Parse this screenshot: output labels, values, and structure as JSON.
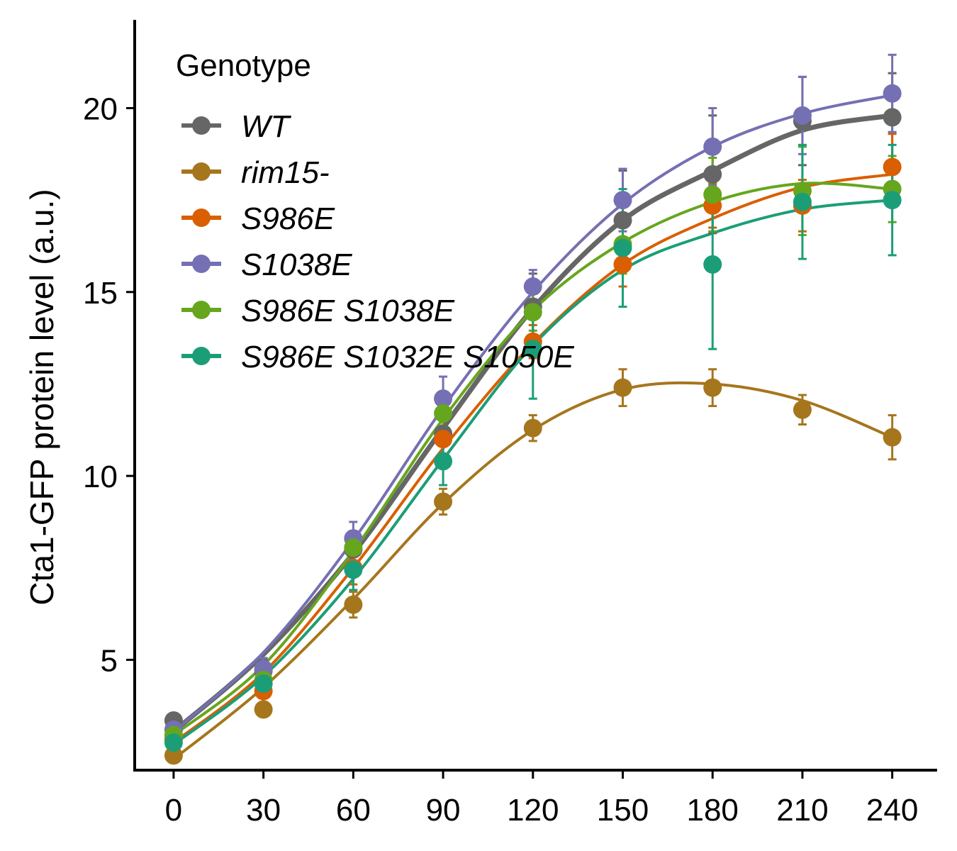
{
  "chart_data": {
    "type": "line",
    "title": "",
    "xlabel": "",
    "ylabel": "Cta1-GFP protein level (a.u.)",
    "x": [
      0,
      30,
      60,
      90,
      120,
      150,
      180,
      210,
      240
    ],
    "x_ticks": [
      "0",
      "30",
      "60",
      "90",
      "120",
      "150",
      "180",
      "210",
      "240"
    ],
    "y_ticks": [
      "5",
      "10",
      "15",
      "20"
    ],
    "xlim": [
      -13,
      255
    ],
    "ylim": [
      2.0,
      22.4
    ],
    "grid": false,
    "legend": {
      "title": "Genotype",
      "position": "top-left"
    },
    "series": [
      {
        "name": "WT",
        "color": "#666666",
        "values": [
          3.35,
          4.7,
          8.0,
          11.15,
          14.6,
          16.95,
          18.2,
          19.65,
          19.75
        ],
        "errors": [
          0.2,
          0.3,
          0.5,
          0.6,
          0.9,
          1.35,
          1.6,
          1.2,
          1.2
        ],
        "fit": [
          3.05,
          5.15,
          7.9,
          11.3,
          14.55,
          16.95,
          18.3,
          19.4,
          19.8
        ]
      },
      {
        "name": "rim15-",
        "color": "#a6761d",
        "values": [
          2.4,
          3.65,
          6.5,
          9.3,
          11.3,
          12.4,
          12.4,
          11.8,
          11.05
        ],
        "errors": [
          0.2,
          0.2,
          0.35,
          0.35,
          0.35,
          0.5,
          0.5,
          0.4,
          0.6
        ],
        "fit": [
          2.3,
          4.25,
          6.65,
          9.25,
          11.25,
          12.35,
          12.5,
          12.05,
          11.05
        ]
      },
      {
        "name": "S986E",
        "color": "#d95f02",
        "values": [
          2.85,
          4.15,
          7.5,
          11.0,
          13.65,
          15.75,
          17.35,
          17.35,
          18.4
        ],
        "errors": [
          0.2,
          0.3,
          0.45,
          0.5,
          0.45,
          0.6,
          0.6,
          0.7,
          0.9
        ],
        "fit": [
          2.75,
          4.65,
          7.5,
          10.75,
          13.6,
          15.75,
          17.0,
          17.85,
          18.2
        ]
      },
      {
        "name": "S1038E",
        "color": "#7570b3",
        "values": [
          3.1,
          4.75,
          8.3,
          12.1,
          15.15,
          17.5,
          18.95,
          19.8,
          20.4
        ],
        "errors": [
          0.2,
          0.3,
          0.45,
          0.6,
          0.45,
          0.85,
          1.05,
          1.05,
          1.05
        ],
        "fit": [
          3.05,
          5.2,
          8.25,
          11.85,
          15.0,
          17.4,
          18.95,
          19.85,
          20.35
        ]
      },
      {
        "name": "S986E S1038E",
        "color": "#66a61e",
        "values": [
          2.95,
          4.45,
          8.05,
          11.7,
          14.45,
          16.3,
          17.65,
          17.75,
          17.8
        ],
        "errors": [
          0.2,
          0.3,
          0.45,
          0.5,
          0.5,
          0.8,
          1.0,
          1.2,
          0.9
        ],
        "fit": [
          2.95,
          4.85,
          7.95,
          11.55,
          14.5,
          16.35,
          17.45,
          17.95,
          17.8
        ]
      },
      {
        "name": "S986E S1032E S1050E",
        "color": "#1b9e77",
        "values": [
          2.75,
          4.35,
          7.45,
          10.4,
          13.45,
          16.2,
          15.75,
          17.45,
          17.5
        ],
        "errors": [
          0.2,
          0.3,
          0.55,
          0.65,
          1.35,
          1.6,
          2.3,
          1.55,
          1.5
        ],
        "fit": [
          2.7,
          4.55,
          7.2,
          10.45,
          13.55,
          15.6,
          16.6,
          17.25,
          17.5
        ]
      }
    ]
  }
}
